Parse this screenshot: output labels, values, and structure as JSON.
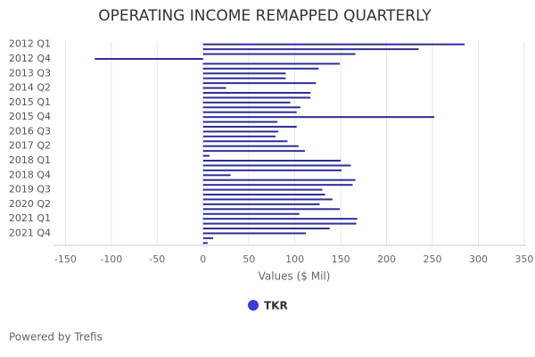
{
  "chart_data": {
    "type": "hbar",
    "title": "OPERATING INCOME REMAPPED QUARTERLY",
    "categories": [
      "2012 Q1",
      null,
      null,
      "2012 Q4",
      null,
      null,
      "2013 Q3",
      null,
      null,
      "2014 Q2",
      null,
      null,
      "2015 Q1",
      null,
      null,
      "2015 Q4",
      null,
      null,
      "2016 Q3",
      null,
      null,
      "2017 Q2",
      null,
      null,
      "2018 Q1",
      null,
      null,
      "2018 Q4",
      null,
      null,
      "2019 Q3",
      null,
      null,
      "2020 Q2",
      null,
      null,
      "2021 Q1",
      null,
      null,
      "2021 Q4",
      null,
      null
    ],
    "series": [
      {
        "name": "TKR",
        "color": "#2e2e99",
        "values": [
          285,
          235,
          166,
          -118,
          149,
          126,
          90,
          90,
          123,
          25,
          117,
          117,
          95,
          106,
          102,
          252,
          81,
          102,
          82,
          79,
          92,
          104,
          111,
          7,
          150,
          161,
          151,
          30,
          166,
          163,
          130,
          133,
          141,
          127,
          149,
          105,
          168,
          167,
          138,
          112,
          11,
          5
        ]
      }
    ],
    "legend_color": "#3b3bd6",
    "xlabel": "Values ($ Mil)",
    "xlim": [
      -163,
      352
    ],
    "xticks": [
      -150,
      -100,
      -50,
      0,
      50,
      100,
      150,
      200,
      250,
      300,
      350
    ],
    "grid": true,
    "footer": "Powered by Trefis"
  }
}
